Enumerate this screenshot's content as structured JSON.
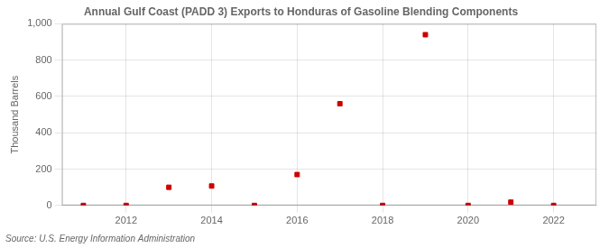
{
  "chart_data": {
    "type": "scatter",
    "title": "Annual Gulf Coast (PADD 3) Exports to Honduras of Gasoline Blending Components",
    "ylabel": "Thousand Barrels",
    "source": "Source: U.S. Energy Information Administration",
    "x": [
      2011,
      2012,
      2013,
      2014,
      2015,
      2016,
      2017,
      2018,
      2019,
      2020,
      2021,
      2022
    ],
    "values": [
      0,
      0,
      100,
      107,
      0,
      170,
      560,
      0,
      940,
      0,
      18,
      0
    ],
    "color": "#cc0000",
    "marker": "square",
    "xlim": [
      2010.5,
      2023.0
    ],
    "xticks": [
      2012,
      2014,
      2016,
      2018,
      2020,
      2022
    ],
    "ylim": [
      0,
      1000
    ],
    "yticks": [
      0,
      200,
      400,
      600,
      800,
      {
        "value": 1000,
        "label": "1,000"
      }
    ],
    "grid": true
  }
}
